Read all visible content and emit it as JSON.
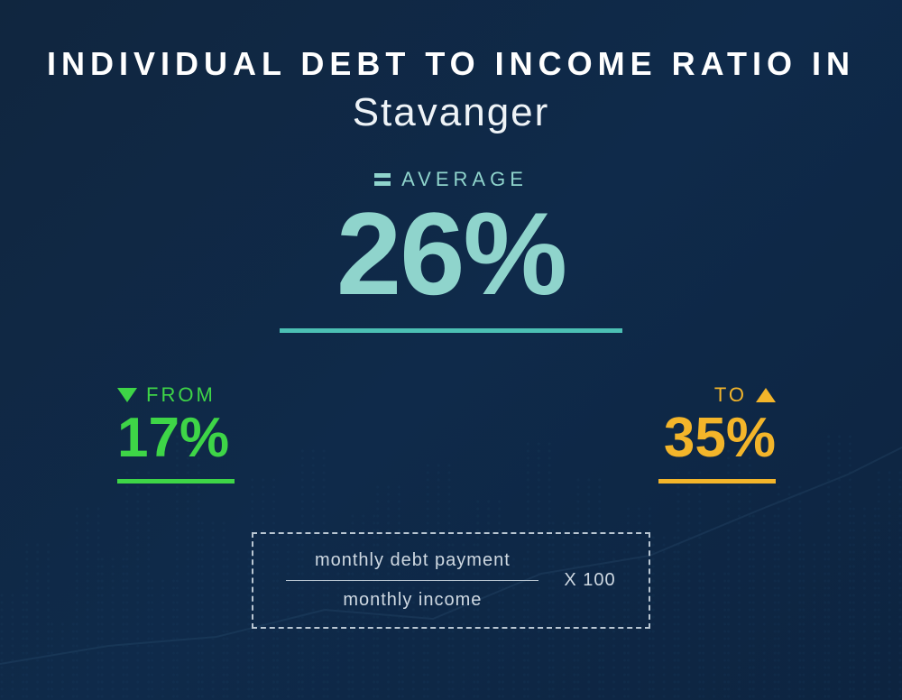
{
  "type": "infographic",
  "background_gradient": [
    "#10263f",
    "#0f2a4a",
    "#0d2440"
  ],
  "title": {
    "line1": "INDIVIDUAL DEBT TO INCOME RATIO IN",
    "line1_color": "#ffffff",
    "line1_fontsize": 36,
    "line2": "Stavanger",
    "line2_color": "#eef3f7",
    "line2_fontsize": 44
  },
  "average": {
    "label": "AVERAGE",
    "label_color": "#8fd4cc",
    "label_fontsize": 22,
    "equals_icon_color": "#8fd4cc",
    "value": "26%",
    "value_color": "#8fd4cc",
    "value_fontsize": 130,
    "underline_color": "#4cc0b4",
    "underline_width": 380
  },
  "range": {
    "from": {
      "label": "FROM",
      "label_color": "#3ed547",
      "label_fontsize": 22,
      "value": "17%",
      "value_color": "#3ed547",
      "value_fontsize": 62,
      "underline_color": "#3ed547",
      "triangle_color": "#3ed547",
      "triangle_direction": "down"
    },
    "to": {
      "label": "TO",
      "label_color": "#f3b52a",
      "label_fontsize": 22,
      "value": "35%",
      "value_color": "#f3b52a",
      "value_fontsize": 62,
      "underline_color": "#f3b52a",
      "triangle_color": "#f3b52a",
      "triangle_direction": "up"
    }
  },
  "formula": {
    "numerator": "monthly debt payment",
    "denominator": "monthly income",
    "multiplier": "X 100",
    "text_color": "#cfd9e2",
    "text_fontsize": 20,
    "border_color": "#b9c6d2"
  },
  "decoration": {
    "bar_color": "#1f4a6e",
    "line_color": "#4a7a9e"
  }
}
